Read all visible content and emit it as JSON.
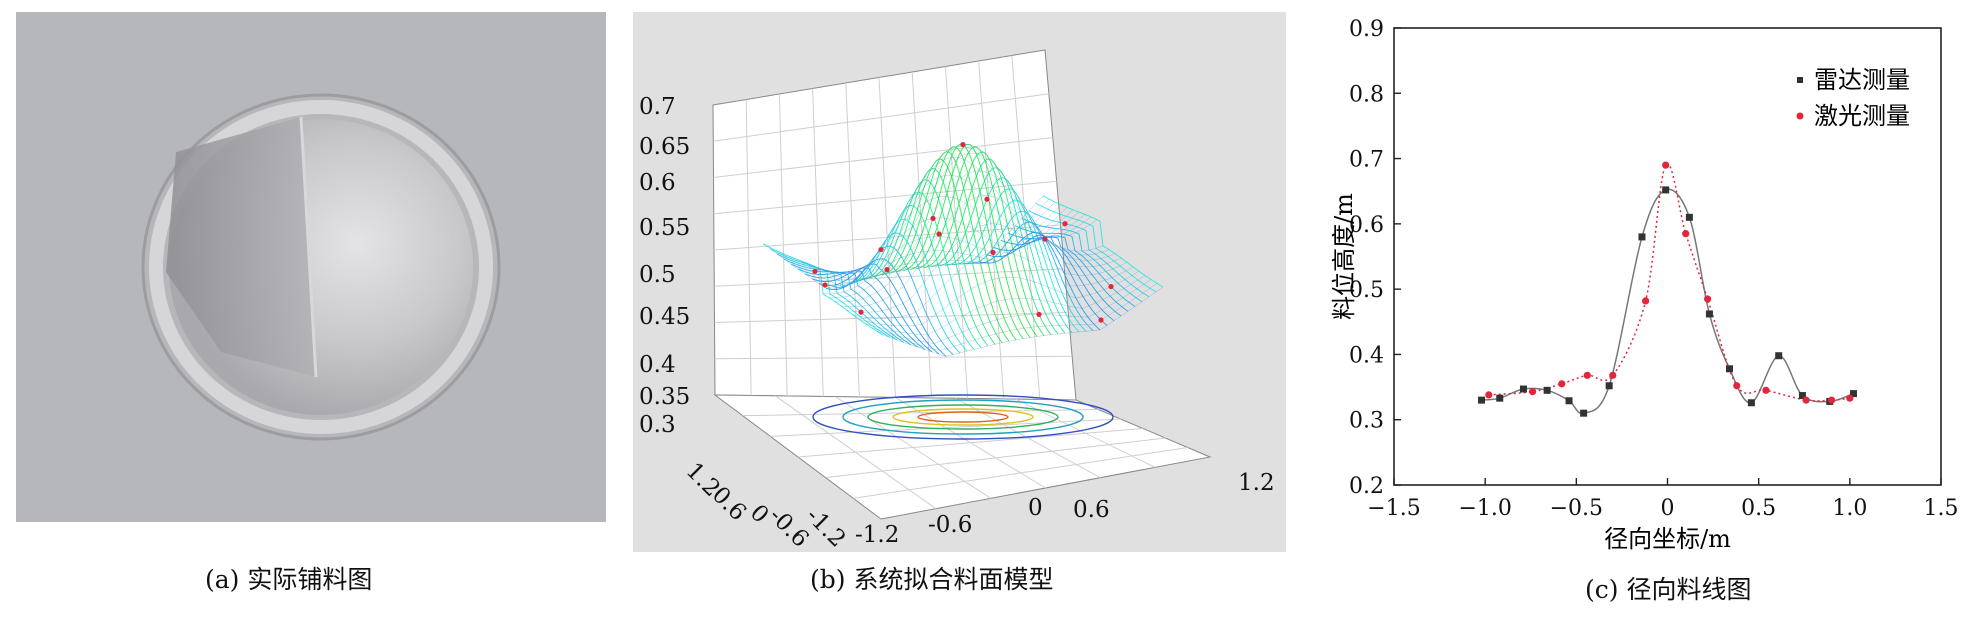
{
  "figure": {
    "captions": {
      "a": {
        "label": "(a)",
        "text": "实际铺料图"
      },
      "b": {
        "label": "(b)",
        "text": "系统拟合料面模型"
      },
      "c": {
        "label": "(c)",
        "text": "径向料线图"
      }
    }
  },
  "surface_model": {
    "z_ticks": [
      "0.7",
      "0.65",
      "0.6",
      "0.55",
      "0.5",
      "0.45",
      "0.4",
      "0.35",
      "0.3"
    ],
    "y_ticks": [
      "1.2",
      "0.6",
      "0",
      "-0.6",
      "-1.2"
    ],
    "x_ticks": [
      "-1.2",
      "-0.6",
      "0",
      "0.6",
      "1.2"
    ]
  },
  "chart_data": {
    "type": "scatter",
    "xlabel": "径向坐标/m",
    "ylabel": "料位高度/m",
    "xlim": [
      -1.5,
      1.5
    ],
    "ylim": [
      0.2,
      0.9
    ],
    "x_ticks": [
      -1.5,
      -1.0,
      -0.5,
      0,
      0.5,
      1.0,
      1.5
    ],
    "x_tick_labels": [
      "−1.5",
      "−1.0",
      "−0.5",
      "0",
      "0.5",
      "1.0",
      "1.5"
    ],
    "y_ticks": [
      0.2,
      0.3,
      0.4,
      0.5,
      0.6,
      0.7,
      0.8,
      0.9
    ],
    "y_tick_labels": [
      "0.2",
      "0.3",
      "0.4",
      "0.5",
      "0.6",
      "0.7",
      "0.8",
      "0.9"
    ],
    "legend_position": "top-right",
    "grid": false,
    "series": [
      {
        "name": "雷达测量",
        "color": "#333333",
        "marker": "square",
        "line": "solid",
        "x": [
          -1.02,
          -0.92,
          -0.79,
          -0.66,
          -0.54,
          -0.46,
          -0.32,
          -0.14,
          -0.01,
          0.12,
          0.23,
          0.34,
          0.46,
          0.61,
          0.74,
          0.89,
          1.02
        ],
        "y": [
          0.33,
          0.333,
          0.347,
          0.345,
          0.329,
          0.31,
          0.352,
          0.58,
          0.652,
          0.61,
          0.462,
          0.378,
          0.326,
          0.398,
          0.337,
          0.328,
          0.34
        ]
      },
      {
        "name": "激光测量",
        "color": "#e0283c",
        "marker": "circle",
        "line": "dotted",
        "x": [
          -0.98,
          -0.74,
          -0.58,
          -0.44,
          -0.3,
          -0.12,
          -0.01,
          0.1,
          0.22,
          0.38,
          0.54,
          0.76,
          0.9,
          1.0
        ],
        "y": [
          0.338,
          0.343,
          0.355,
          0.368,
          0.368,
          0.482,
          0.69,
          0.585,
          0.485,
          0.352,
          0.345,
          0.33,
          0.33,
          0.333
        ]
      }
    ]
  }
}
